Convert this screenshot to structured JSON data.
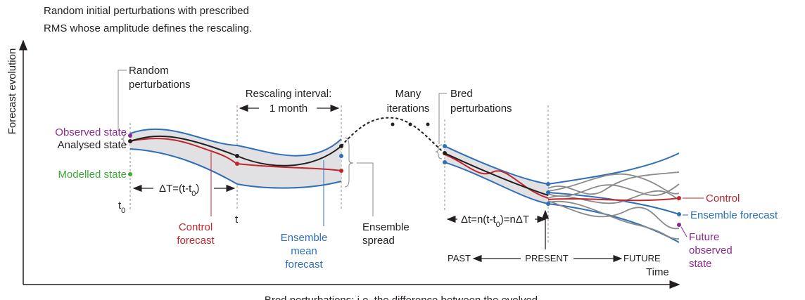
{
  "header": {
    "lines": [
      "Random initial perturbations with prescribed",
      "RMS whose amplitude defines the rescaling."
    ]
  },
  "axes": {
    "y_label": "Forecast evolution",
    "x_label": "Time"
  },
  "footer": {
    "text": "Bred perturbations: i.e. the difference between the evolved"
  },
  "labels": {
    "observed_state": "Observed state",
    "analysed_state": "Analysed state",
    "modelled_state": "Modelled state",
    "random_perturbations": [
      "Random",
      "perturbations"
    ],
    "delta_T": {
      "text": "ΔT=(t-t",
      "sub": "0",
      "close": ")"
    },
    "t0": {
      "text": "t",
      "sub": "0"
    },
    "t": "t",
    "control_forecast": [
      "Control",
      "forecast"
    ],
    "rescaling_interval": [
      "Rescaling interval:",
      "1 month"
    ],
    "many_iterations": [
      "Many",
      "iterations"
    ],
    "ensemble_mean_forecast": [
      "Ensemble",
      "mean",
      "forecast"
    ],
    "ensemble_spread": [
      "Ensemble",
      "spread"
    ],
    "bred_perturbations": [
      "Bred",
      "perturbations"
    ],
    "delta_t": {
      "text": "Δt=n(t-t",
      "sub": "0",
      "close": ")=nΔT"
    },
    "past": "PAST",
    "present": "PRESENT",
    "future": "FUTURE",
    "control": "Control",
    "ensemble_forecast": "Ensemble forecast",
    "future_observed_state": [
      "Future",
      "observed",
      "state"
    ]
  }
}
